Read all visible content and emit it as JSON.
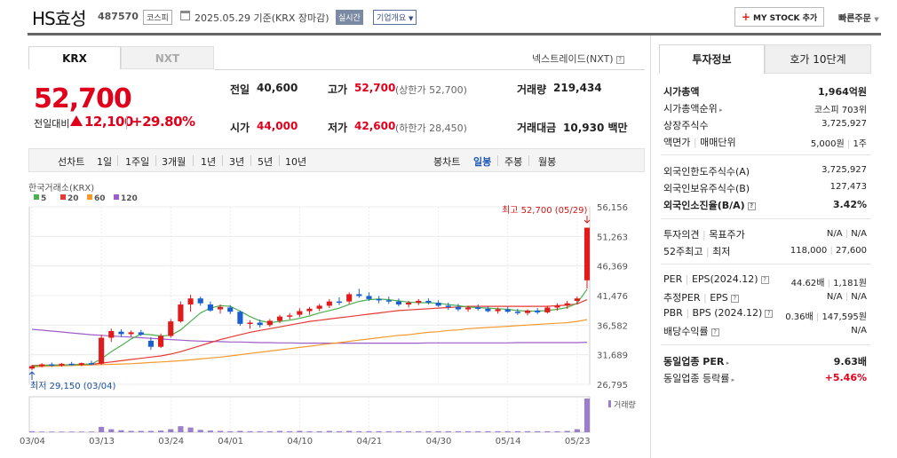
{
  "header": {
    "name": "HS효성",
    "code": "487570",
    "market": "코스피",
    "date": "2025.05.29",
    "basis": "기준(KRX 장마감)",
    "realtime": "실시간",
    "company": "기업개요",
    "mystock": "MY STOCK 추가",
    "quick": "빠른주문"
  },
  "tabs": {
    "krx": "KRX",
    "nxt": "NXT",
    "nextrade": "넥스트레이드(NXT)"
  },
  "price": {
    "current": "52,700",
    "change_label": "전일대비",
    "change": "12,100",
    "pct": "+29.80%"
  },
  "stats": {
    "prev": {
      "label": "전일",
      "value": "40,600"
    },
    "high": {
      "label": "고가",
      "value": "52,700",
      "sub": "(상한가 52,700)"
    },
    "volume": {
      "label": "거래량",
      "value": "219,434"
    },
    "open": {
      "label": "시가",
      "value": "44,000"
    },
    "low": {
      "label": "저가",
      "value": "42,600",
      "sub": "(하한가 28,450)"
    },
    "amount": {
      "label": "거래대금",
      "value": "10,930 백만"
    }
  },
  "periods": {
    "line": "선차트",
    "items": [
      "1일",
      "1주일",
      "3개월",
      "1년",
      "3년",
      "5년",
      "10년"
    ],
    "candle": "봉차트",
    "candle_items": [
      "일봉",
      "주봉",
      "월봉"
    ]
  },
  "chart_data": {
    "type": "candlestick",
    "source": "한국거래소(KRX)",
    "legend": [
      {
        "name": "5",
        "color": "#4caf50"
      },
      {
        "name": "20",
        "color": "#e53935"
      },
      {
        "name": "60",
        "color": "#f39a2e"
      },
      {
        "name": "120",
        "color": "#9c5fc8"
      }
    ],
    "yticks": [
      "56,156",
      "51,263",
      "46,369",
      "41,476",
      "36,582",
      "31,689",
      "26,795"
    ],
    "ylim": [
      26795,
      56156
    ],
    "xticks": [
      "03/04",
      "03/13",
      "03/24",
      "04/01",
      "04/10",
      "04/21",
      "04/30",
      "05/14",
      "05/23"
    ],
    "xtick_index": [
      0,
      7,
      14,
      20,
      27,
      34,
      41,
      48,
      55
    ],
    "high_label": "최고 52,700 (05/29)",
    "low_label": "최저 29,150 (03/04)",
    "volume_label": "거래량",
    "candles": [
      [
        29400,
        30000,
        29150,
        29800
      ],
      [
        29800,
        30300,
        29600,
        30100
      ],
      [
        30100,
        30400,
        29700,
        29900
      ],
      [
        29900,
        30300,
        29700,
        30200
      ],
      [
        30200,
        30500,
        29900,
        30000
      ],
      [
        30000,
        30400,
        29800,
        30300
      ],
      [
        30300,
        30700,
        30000,
        30100
      ],
      [
        30200,
        35000,
        30000,
        34500
      ],
      [
        34500,
        36000,
        33800,
        35600
      ],
      [
        35500,
        35900,
        34600,
        35100
      ],
      [
        35100,
        35700,
        34700,
        35400
      ],
      [
        35400,
        35800,
        34800,
        35000
      ],
      [
        34000,
        34600,
        32500,
        33000
      ],
      [
        33000,
        35200,
        32800,
        34800
      ],
      [
        34800,
        37600,
        34500,
        37200
      ],
      [
        37200,
        40500,
        37000,
        40000
      ],
      [
        40000,
        41600,
        38800,
        41000
      ],
      [
        41000,
        41300,
        39800,
        40200
      ],
      [
        40000,
        40500,
        38800,
        39000
      ],
      [
        39200,
        40000,
        38500,
        39600
      ],
      [
        39500,
        39900,
        38400,
        38800
      ],
      [
        38800,
        39000,
        36500,
        36800
      ],
      [
        36800,
        37400,
        36000,
        37000
      ],
      [
        37000,
        37500,
        36200,
        36600
      ],
      [
        36600,
        37600,
        36300,
        37300
      ],
      [
        37300,
        38300,
        36900,
        38000
      ],
      [
        38000,
        38600,
        37500,
        38200
      ],
      [
        38300,
        39400,
        37900,
        38900
      ],
      [
        38900,
        39600,
        38300,
        39300
      ],
      [
        39300,
        40100,
        38900,
        39800
      ],
      [
        39800,
        40900,
        39400,
        40500
      ],
      [
        40500,
        41200,
        39900,
        40400
      ],
      [
        40500,
        42000,
        40100,
        41700
      ],
      [
        41700,
        42600,
        41100,
        41400
      ],
      [
        41400,
        42000,
        40600,
        40900
      ],
      [
        40900,
        41400,
        40200,
        40700
      ],
      [
        40700,
        41300,
        40100,
        40500
      ],
      [
        40500,
        41000,
        39700,
        40000
      ],
      [
        40000,
        40600,
        39500,
        40300
      ],
      [
        40300,
        40900,
        39900,
        40600
      ],
      [
        40600,
        41000,
        40000,
        40300
      ],
      [
        40300,
        40700,
        39600,
        39800
      ],
      [
        39800,
        40300,
        39100,
        39600
      ],
      [
        39600,
        40100,
        38900,
        39200
      ],
      [
        39200,
        39800,
        38800,
        39500
      ],
      [
        39500,
        40000,
        39000,
        39300
      ],
      [
        39300,
        39700,
        38700,
        38900
      ],
      [
        38900,
        39500,
        38500,
        39200
      ],
      [
        39200,
        39600,
        38600,
        38800
      ],
      [
        38800,
        39300,
        38300,
        38600
      ],
      [
        38600,
        39200,
        38200,
        39000
      ],
      [
        39000,
        39400,
        38400,
        38700
      ],
      [
        38700,
        39800,
        38500,
        39500
      ],
      [
        39500,
        40200,
        39000,
        39800
      ],
      [
        39800,
        40600,
        39300,
        40200
      ],
      [
        40600,
        41300,
        40000,
        41000
      ],
      [
        44000,
        52700,
        42600,
        52700
      ]
    ],
    "ma5": [
      29800,
      29900,
      29950,
      30000,
      30000,
      30100,
      30150,
      31000,
      32200,
      33200,
      34300,
      35100,
      35000,
      34800,
      34900,
      35800,
      37200,
      38600,
      39400,
      39800,
      39700,
      38900,
      38000,
      37300,
      37000,
      37200,
      37400,
      37700,
      38100,
      38600,
      39000,
      39400,
      40000,
      40500,
      40800,
      40900,
      40800,
      40600,
      40400,
      40300,
      40300,
      40200,
      40000,
      39800,
      39600,
      39500,
      39400,
      39300,
      39200,
      39000,
      38900,
      38900,
      39000,
      39200,
      39500,
      40200,
      42500
    ],
    "ma20": [
      29900,
      29950,
      30000,
      30000,
      30050,
      30100,
      30100,
      30300,
      30500,
      30700,
      30900,
      31100,
      31300,
      31500,
      31800,
      32200,
      32700,
      33200,
      33700,
      34200,
      34600,
      35000,
      35400,
      35700,
      36000,
      36300,
      36600,
      36900,
      37200,
      37400,
      37600,
      37800,
      38000,
      38200,
      38400,
      38600,
      38800,
      39000,
      39100,
      39200,
      39300,
      39400,
      39500,
      39600,
      39700,
      39700,
      39700,
      39700,
      39700,
      39700,
      39700,
      39700,
      39700,
      39800,
      39900,
      40100,
      40800
    ],
    "ma60": [
      29700,
      29750,
      29800,
      29850,
      29900,
      29950,
      30000,
      30050,
      30100,
      30150,
      30200,
      30300,
      30400,
      30500,
      30600,
      30700,
      30850,
      31000,
      31150,
      31300,
      31500,
      31700,
      31900,
      32100,
      32300,
      32500,
      32700,
      32900,
      33100,
      33300,
      33500,
      33700,
      33900,
      34100,
      34300,
      34500,
      34700,
      34900,
      35000,
      35200,
      35400,
      35500,
      35700,
      35800,
      36000,
      36100,
      36200,
      36300,
      36400,
      36500,
      36600,
      36700,
      36800,
      36900,
      37000,
      37200,
      37500
    ],
    "ma120": [
      35900,
      35750,
      35600,
      35450,
      35300,
      35150,
      35000,
      34900,
      34800,
      34700,
      34600,
      34500,
      34400,
      34300,
      34200,
      34100,
      34000,
      33950,
      33900,
      33850,
      33800,
      33800,
      33750,
      33700,
      33700,
      33650,
      33650,
      33600,
      33600,
      33600,
      33600,
      33600,
      33600,
      33600,
      33600,
      33600,
      33600,
      33600,
      33600,
      33600,
      33650,
      33650,
      33650,
      33650,
      33650,
      33650,
      33650,
      33650,
      33650,
      33700,
      33700,
      33700,
      33700,
      33700,
      33700,
      33700,
      33750
    ],
    "volume": [
      3,
      2,
      2,
      2,
      2,
      2,
      2,
      16,
      9,
      6,
      4,
      4,
      4,
      5,
      9,
      18,
      14,
      7,
      5,
      4,
      3,
      4,
      3,
      3,
      3,
      4,
      3,
      4,
      3,
      3,
      4,
      3,
      4,
      3,
      3,
      3,
      3,
      3,
      3,
      3,
      3,
      3,
      3,
      3,
      3,
      3,
      3,
      3,
      3,
      3,
      3,
      3,
      3,
      3,
      4,
      9,
      100
    ]
  },
  "right": {
    "tabs": {
      "invest": "투자정보",
      "quote": "호가 10단계"
    },
    "mcap": {
      "label": "시가총액",
      "value": "1,964억원"
    },
    "mcap_rank": {
      "label": "시가총액순위",
      "value": "코스피 703위"
    },
    "shares": {
      "label": "상장주식수",
      "value": "3,725,927"
    },
    "par": {
      "label": "액면가",
      "label2": "매매단위",
      "value": "5,000원",
      "value2": "1주"
    },
    "foreign_limit": {
      "label": "외국인한도주식수(A)",
      "value": "3,725,927"
    },
    "foreign_hold": {
      "label": "외국인보유주식수(B)",
      "value": "127,473"
    },
    "foreign_rate": {
      "label": "외국인소진율(B/A)",
      "value": "3.42%"
    },
    "opinion": {
      "label": "투자의견",
      "label2": "목표주가",
      "value": "N/A",
      "value2": "N/A"
    },
    "w52": {
      "label": "52주최고",
      "label2": "최저",
      "value": "118,000",
      "value2": "27,600"
    },
    "per": {
      "label": "PER",
      "label2": "EPS(2024.12)",
      "value": "44.62배",
      "value2": "1,181원"
    },
    "est_per": {
      "label": "추정PER",
      "label2": "EPS",
      "value": "N/A",
      "value2": "N/A"
    },
    "pbr": {
      "label": "PBR",
      "label2": "BPS (2024.12)",
      "value": "0.36배",
      "value2": "147,595원"
    },
    "div": {
      "label": "배당수익률",
      "value": "N/A"
    },
    "ind_per": {
      "label": "동일업종 PER",
      "value": "9.63배"
    },
    "ind_rate": {
      "label": "동일업종 등락률",
      "value": "+5.46%"
    }
  }
}
